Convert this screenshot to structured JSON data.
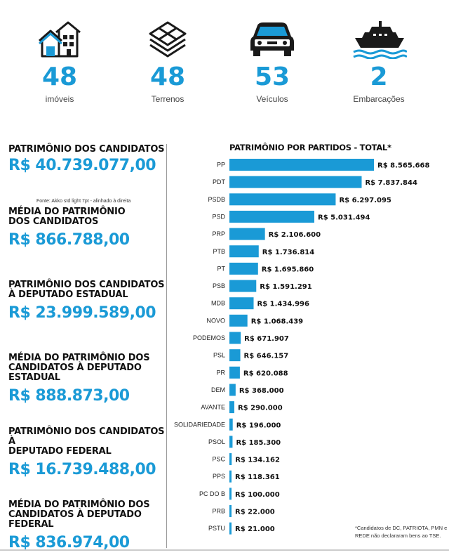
{
  "stats": [
    {
      "icon": "houses-icon",
      "value": "48",
      "label": "imóveis"
    },
    {
      "icon": "layers-icon",
      "value": "48",
      "label": "Terrenos"
    },
    {
      "icon": "car-icon",
      "value": "53",
      "label": "Veículos"
    },
    {
      "icon": "ship-icon",
      "value": "2",
      "label": "Embarcações"
    }
  ],
  "left": [
    {
      "heading": "PATRIMÔNIO DOS CANDIDATOS",
      "value": "R$ 40.739.077,00"
    },
    {
      "heading": "MÉDIA DO PATRIMÔNIO\nDOS CANDIDATOS",
      "value": "R$ 866.788,00"
    },
    {
      "heading": "PATRIMÔNIO DOS CANDIDATOS\nÀ DEPUTADO ESTADUAL",
      "value": "R$ 23.999.589,00"
    },
    {
      "heading": "MÉDIA DO PATRIMÔNIO DOS\nCANDIDATOS À DEPUTADO ESTADUAL",
      "value": "R$ 888.873,00"
    },
    {
      "heading": "PATRIMÔNIO DOS CANDIDATOS À\nDEPUTADO FEDERAL",
      "value": "R$ 16.739.488,00"
    },
    {
      "heading": "MÉDIA DO PATRIMÔNIO DOS\nCANDIDATOS À DEPUTADO FEDERAL",
      "value": "R$ 836.974,00"
    }
  ],
  "left_note": "Fonte: Akko std light 7pt - alinhado à direita",
  "footnote": "*Candidatos de DC, PATRIOTA, PMN e REDE não declararam bens ao TSE.",
  "colors": {
    "accent": "#1a9ad6"
  },
  "chart_data": {
    "type": "bar",
    "orientation": "horizontal",
    "title": "PATRIMÔNIO POR PARTIDOS - TOTAL*",
    "categories": [
      "PP",
      "PDT",
      "PSDB",
      "PSD",
      "PRP",
      "PTB",
      "PT",
      "PSB",
      "MDB",
      "NOVO",
      "PODEMOS",
      "PSL",
      "PR",
      "DEM",
      "AVANTE",
      "SOLIDARIEDADE",
      "PSOL",
      "PSC",
      "PPS",
      "PC DO B",
      "PRB",
      "PSTU"
    ],
    "values": [
      8565668,
      7837844,
      6297095,
      5031494,
      2106600,
      1736814,
      1695860,
      1591291,
      1434996,
      1068439,
      671907,
      646157,
      620088,
      368000,
      290000,
      196000,
      185300,
      134162,
      118361,
      100000,
      22000,
      21000
    ],
    "value_labels": [
      "R$ 8.565.668",
      "R$ 7.837.844",
      "R$ 6.297.095",
      "R$ 5.031.494",
      "R$ 2.106.600",
      "R$ 1.736.814",
      "R$ 1.695.860",
      "R$ 1.591.291",
      "R$ 1.434.996",
      "R$ 1.068.439",
      "R$ 671.907",
      "R$ 646.157",
      "R$ 620.088",
      "R$ 368.000",
      "R$ 290.000",
      "R$ 196.000",
      "R$ 185.300",
      "R$ 134.162",
      "R$ 118.361",
      "R$ 100.000",
      "R$ 22.000",
      "R$ 21.000"
    ]
  }
}
